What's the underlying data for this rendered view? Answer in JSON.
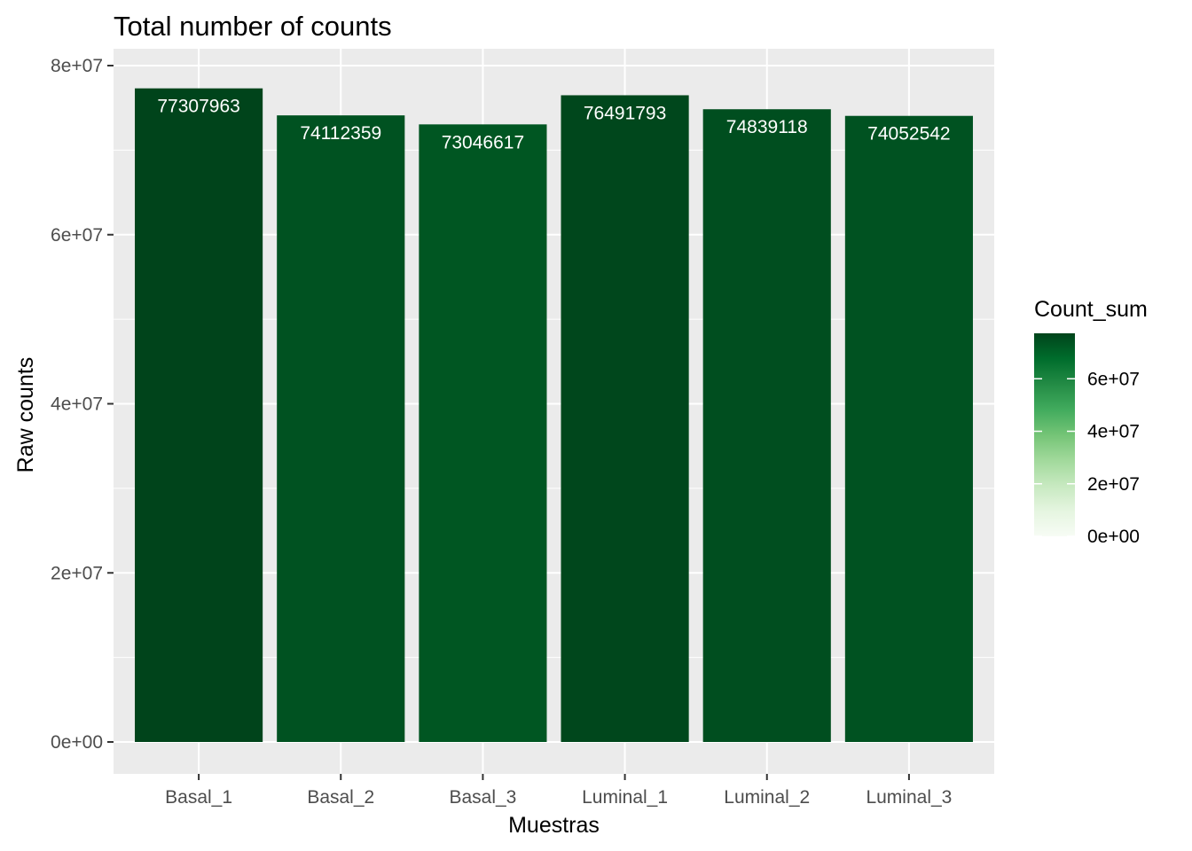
{
  "chart_data": {
    "type": "bar",
    "title": "Total number of counts",
    "xlabel": "Muestras",
    "ylabel": "Raw counts",
    "categories": [
      "Basal_1",
      "Basal_2",
      "Basal_3",
      "Luminal_1",
      "Luminal_2",
      "Luminal_3"
    ],
    "values": [
      77307963,
      74112359,
      73046617,
      76491793,
      74839118,
      74052542
    ],
    "value_labels": [
      "77307963",
      "74112359",
      "73046617",
      "76491793",
      "74839118",
      "74052542"
    ],
    "ylim": [
      0,
      80000000
    ],
    "y_ticks": [
      {
        "value": 0,
        "label": "0e+00"
      },
      {
        "value": 20000000,
        "label": "2e+07"
      },
      {
        "value": 40000000,
        "label": "4e+07"
      },
      {
        "value": 60000000,
        "label": "6e+07"
      },
      {
        "value": 80000000,
        "label": "8e+07"
      }
    ],
    "grid": true,
    "legend": {
      "title": "Count_sum",
      "placement": "right",
      "type": "colorbar",
      "range": [
        0,
        77307963
      ],
      "low_color": "#f7fcf5",
      "high_color": "#00441b",
      "ticks": [
        {
          "value": 0,
          "label": "0e+00"
        },
        {
          "value": 20000000,
          "label": "2e+07"
        },
        {
          "value": 40000000,
          "label": "4e+07"
        },
        {
          "value": 60000000,
          "label": "6e+07"
        }
      ]
    },
    "colors": {
      "panel_background": "#ebebeb",
      "grid": "#ffffff",
      "bar_label": "#ffffff"
    }
  }
}
